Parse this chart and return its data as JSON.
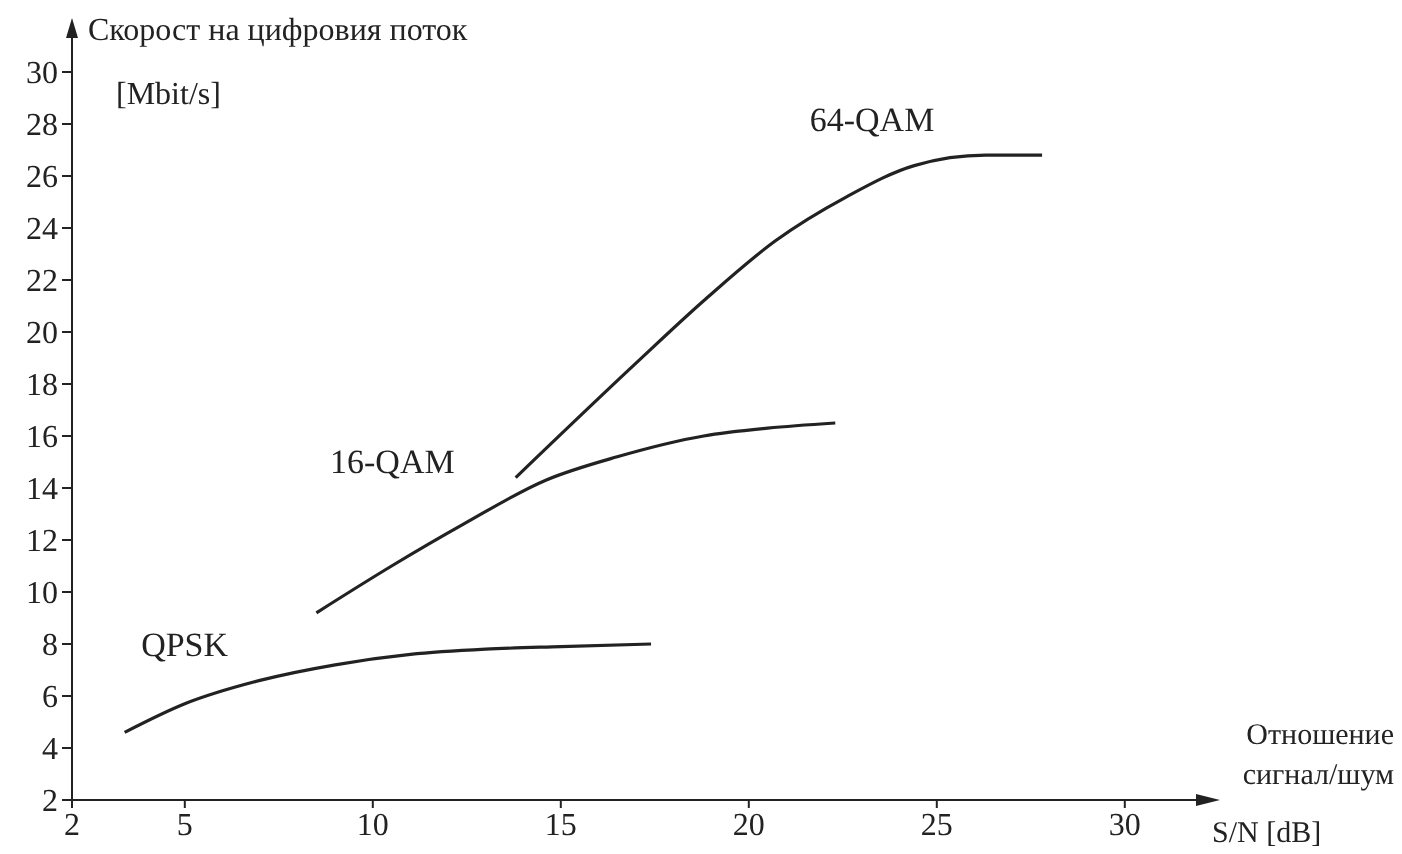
{
  "chart_data": {
    "type": "line",
    "ylabel": "Скорост на цифровия поток\n[Mbit/s]",
    "xlabel": "Отношение\nсигнал/шум\nS/N [dB]",
    "xlim": [
      2,
      32
    ],
    "xticks": [
      2,
      5,
      10,
      15,
      20,
      25,
      30
    ],
    "ylim": [
      2,
      31
    ],
    "yticks": [
      2,
      4,
      6,
      8,
      10,
      12,
      14,
      16,
      18,
      20,
      22,
      24,
      26,
      28,
      30
    ],
    "grid": false,
    "legend": false,
    "marker": "none",
    "line_style": "solid",
    "series": [
      {
        "name": "QPSK",
        "color": "#222222",
        "x": [
          3.4,
          5,
          7,
          9,
          11,
          13,
          15,
          17.4
        ],
        "values": [
          4.6,
          5.7,
          6.6,
          7.2,
          7.6,
          7.8,
          7.9,
          8.0
        ]
      },
      {
        "name": "16-QAM",
        "color": "#222222",
        "x": [
          8.5,
          10.5,
          12.4,
          14.6,
          16.5,
          18.8,
          20.5,
          22.3
        ],
        "values": [
          9.2,
          11.0,
          12.6,
          14.3,
          15.2,
          16.0,
          16.3,
          16.5
        ]
      },
      {
        "name": "64-QAM",
        "color": "#222222",
        "x": [
          13.8,
          17,
          18.8,
          20.7,
          22.6,
          24.4,
          26.3,
          27.8
        ],
        "values": [
          14.4,
          18.8,
          21.2,
          23.5,
          25.2,
          26.4,
          26.8,
          26.8
        ]
      }
    ]
  }
}
